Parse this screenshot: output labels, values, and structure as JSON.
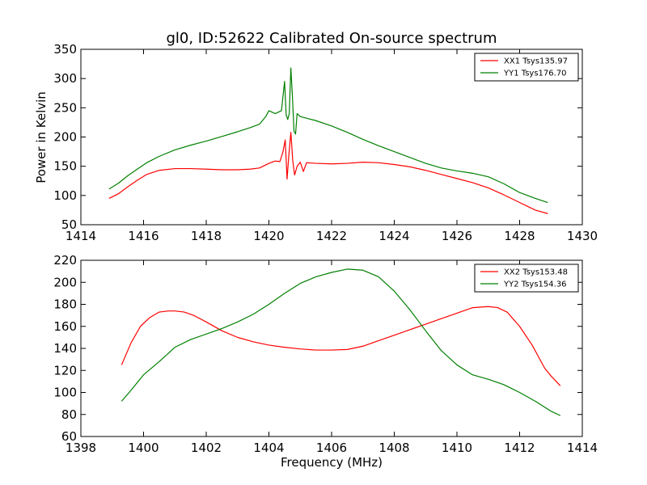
{
  "chart_data": [
    {
      "type": "line",
      "title": "gl0, ID:52622 Calibrated On-source spectrum",
      "xlabel": "",
      "ylabel": "Power in Kelvin",
      "xlim": [
        1414,
        1430
      ],
      "ylim": [
        50,
        350
      ],
      "xticks": [
        1414,
        1416,
        1418,
        1420,
        1422,
        1424,
        1426,
        1428,
        1430
      ],
      "yticks": [
        50,
        100,
        150,
        200,
        250,
        300,
        350
      ],
      "legend_position": "top-right",
      "series": [
        {
          "name": "XX1 Tsys135.97",
          "color": "#ff0000",
          "points": [
            [
              1414.9,
              95
            ],
            [
              1415.2,
              103
            ],
            [
              1415.5,
              115
            ],
            [
              1415.8,
              126
            ],
            [
              1416.1,
              136
            ],
            [
              1416.5,
              143
            ],
            [
              1417.0,
              146
            ],
            [
              1417.5,
              146
            ],
            [
              1418.0,
              145
            ],
            [
              1418.5,
              144
            ],
            [
              1419.0,
              144
            ],
            [
              1419.4,
              145
            ],
            [
              1419.7,
              147
            ],
            [
              1420.0,
              155
            ],
            [
              1420.2,
              159
            ],
            [
              1420.35,
              158
            ],
            [
              1420.45,
              175
            ],
            [
              1420.52,
              195
            ],
            [
              1420.58,
              128
            ],
            [
              1420.63,
              165
            ],
            [
              1420.7,
              208
            ],
            [
              1420.76,
              160
            ],
            [
              1420.82,
              135
            ],
            [
              1420.9,
              150
            ],
            [
              1421.0,
              157
            ],
            [
              1421.1,
              141
            ],
            [
              1421.2,
              156
            ],
            [
              1421.5,
              155
            ],
            [
              1422.0,
              154
            ],
            [
              1422.5,
              155
            ],
            [
              1423.0,
              157
            ],
            [
              1423.5,
              156
            ],
            [
              1424.0,
              153
            ],
            [
              1424.5,
              149
            ],
            [
              1425.0,
              143
            ],
            [
              1425.5,
              136
            ],
            [
              1426.0,
              129
            ],
            [
              1426.5,
              122
            ],
            [
              1427.0,
              113
            ],
            [
              1427.5,
              101
            ],
            [
              1428.0,
              88
            ],
            [
              1428.5,
              75
            ],
            [
              1428.9,
              69
            ]
          ]
        },
        {
          "name": "YY1 Tsys176.70",
          "color": "#008000",
          "points": [
            [
              1414.9,
              111
            ],
            [
              1415.2,
              121
            ],
            [
              1415.5,
              134
            ],
            [
              1415.8,
              145
            ],
            [
              1416.1,
              156
            ],
            [
              1416.5,
              167
            ],
            [
              1417.0,
              178
            ],
            [
              1417.5,
              186
            ],
            [
              1418.0,
              193
            ],
            [
              1418.5,
              201
            ],
            [
              1419.0,
              209
            ],
            [
              1419.4,
              216
            ],
            [
              1419.7,
              222
            ],
            [
              1419.9,
              235
            ],
            [
              1420.0,
              245
            ],
            [
              1420.2,
              240
            ],
            [
              1420.4,
              245
            ],
            [
              1420.5,
              295
            ],
            [
              1420.55,
              238
            ],
            [
              1420.6,
              230
            ],
            [
              1420.65,
              240
            ],
            [
              1420.7,
              318
            ],
            [
              1420.75,
              270
            ],
            [
              1420.8,
              210
            ],
            [
              1420.85,
              205
            ],
            [
              1420.9,
              240
            ],
            [
              1421.0,
              235
            ],
            [
              1421.5,
              228
            ],
            [
              1422.0,
              219
            ],
            [
              1422.5,
              208
            ],
            [
              1423.0,
              196
            ],
            [
              1423.5,
              185
            ],
            [
              1424.0,
              175
            ],
            [
              1424.5,
              165
            ],
            [
              1425.0,
              155
            ],
            [
              1425.5,
              147
            ],
            [
              1426.0,
              142
            ],
            [
              1426.5,
              138
            ],
            [
              1427.0,
              132
            ],
            [
              1427.5,
              120
            ],
            [
              1428.0,
              105
            ],
            [
              1428.5,
              95
            ],
            [
              1428.9,
              88
            ]
          ]
        }
      ]
    },
    {
      "type": "line",
      "title": "",
      "xlabel": "Frequency (MHz)",
      "ylabel": "",
      "xlim": [
        1398,
        1414
      ],
      "ylim": [
        60,
        220
      ],
      "xticks": [
        1398,
        1400,
        1402,
        1404,
        1406,
        1408,
        1410,
        1412,
        1414
      ],
      "yticks": [
        60,
        80,
        100,
        120,
        140,
        160,
        180,
        200,
        220
      ],
      "legend_position": "top-right",
      "series": [
        {
          "name": "XX2 Tsys153.48",
          "color": "#ff0000",
          "points": [
            [
              1399.3,
              125
            ],
            [
              1399.6,
              145
            ],
            [
              1399.9,
              160
            ],
            [
              1400.2,
              168
            ],
            [
              1400.5,
              173
            ],
            [
              1400.8,
              174
            ],
            [
              1401.0,
              174
            ],
            [
              1401.3,
              173
            ],
            [
              1401.6,
              170
            ],
            [
              1402.0,
              164
            ],
            [
              1402.5,
              156
            ],
            [
              1403.0,
              150
            ],
            [
              1403.5,
              146
            ],
            [
              1404.0,
              143
            ],
            [
              1404.5,
              141
            ],
            [
              1405.0,
              139.5
            ],
            [
              1405.5,
              138.5
            ],
            [
              1406.0,
              138.5
            ],
            [
              1406.5,
              139
            ],
            [
              1407.0,
              142
            ],
            [
              1407.5,
              147
            ],
            [
              1408.0,
              152
            ],
            [
              1408.5,
              157
            ],
            [
              1409.0,
              162
            ],
            [
              1409.5,
              167
            ],
            [
              1410.0,
              172
            ],
            [
              1410.5,
              177
            ],
            [
              1411.0,
              178
            ],
            [
              1411.3,
              177
            ],
            [
              1411.6,
              173
            ],
            [
              1412.0,
              160
            ],
            [
              1412.4,
              143
            ],
            [
              1412.8,
              122
            ],
            [
              1413.0,
              115
            ],
            [
              1413.3,
              106
            ]
          ]
        },
        {
          "name": "YY2 Tsys154.36",
          "color": "#008000",
          "points": [
            [
              1399.3,
              92
            ],
            [
              1399.6,
              102
            ],
            [
              1400.0,
              116
            ],
            [
              1400.5,
              128
            ],
            [
              1401.0,
              141
            ],
            [
              1401.5,
              148
            ],
            [
              1402.0,
              153
            ],
            [
              1402.5,
              158
            ],
            [
              1403.0,
              164
            ],
            [
              1403.5,
              171
            ],
            [
              1404.0,
              180
            ],
            [
              1404.5,
              190
            ],
            [
              1405.0,
              199
            ],
            [
              1405.5,
              205
            ],
            [
              1406.0,
              209
            ],
            [
              1406.5,
              212
            ],
            [
              1407.0,
              211
            ],
            [
              1407.5,
              205
            ],
            [
              1408.0,
              192
            ],
            [
              1408.5,
              175
            ],
            [
              1409.0,
              156
            ],
            [
              1409.5,
              138
            ],
            [
              1410.0,
              125
            ],
            [
              1410.5,
              116
            ],
            [
              1411.0,
              112
            ],
            [
              1411.5,
              107
            ],
            [
              1412.0,
              100
            ],
            [
              1412.5,
              92
            ],
            [
              1413.0,
              83
            ],
            [
              1413.3,
              79
            ]
          ]
        }
      ]
    }
  ]
}
